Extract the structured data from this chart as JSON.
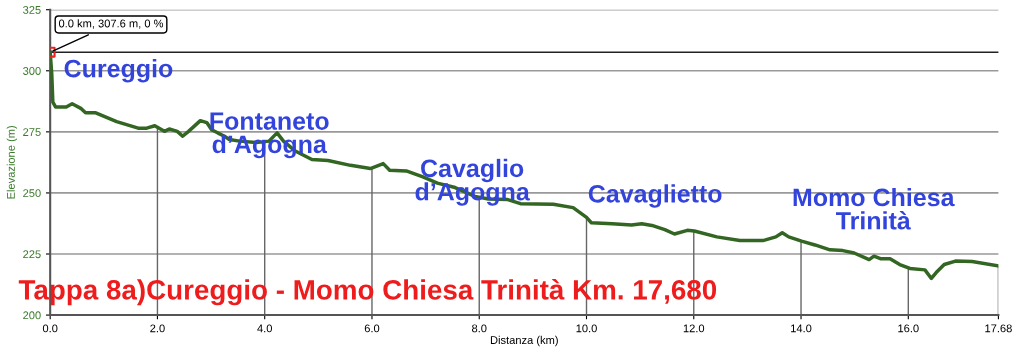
{
  "chart_data": {
    "type": "line",
    "title": "Tappa 8a)Cureggio - Momo Chiesa Trinità Km. 17,680",
    "xlabel": "Distanza (km)",
    "ylabel": "Elevazione (m)",
    "xlim": [
      0,
      17.68
    ],
    "ylim": [
      200,
      325
    ],
    "xticks": [
      {
        "value": 0,
        "label": "0.0"
      },
      {
        "value": 2,
        "label": "2.0"
      },
      {
        "value": 4,
        "label": "4.0"
      },
      {
        "value": 6,
        "label": "6.0"
      },
      {
        "value": 8,
        "label": "8.0"
      },
      {
        "value": 10,
        "label": "10.0"
      },
      {
        "value": 12,
        "label": "12.0"
      },
      {
        "value": 14,
        "label": "14.0"
      },
      {
        "value": 16,
        "label": "16.0"
      },
      17.68
    ],
    "yticks": [
      200,
      225,
      250,
      275,
      300,
      325
    ],
    "grid": true,
    "series": [
      {
        "color": "#336622",
        "x": [
          0,
          0.03,
          0.05,
          0.1,
          0.3,
          0.41,
          0.58,
          0.66,
          0.85,
          1.24,
          1.64,
          1.8,
          1.95,
          2.13,
          2.22,
          2.37,
          2.47,
          2.58,
          2.8,
          2.92,
          3.01,
          3.13,
          3.25,
          3.34,
          3.53,
          3.84,
          4.08,
          4.23,
          4.35,
          4.56,
          4.88,
          5.18,
          5.6,
          5.97,
          6.21,
          6.33,
          6.64,
          6.95,
          7.22,
          7.55,
          7.92,
          8.17,
          8.53,
          8.77,
          9.38,
          9.75,
          10.0,
          10.09,
          10.48,
          10.84,
          11.03,
          11.22,
          11.46,
          11.64,
          11.88,
          12.01,
          12.43,
          12.86,
          13.29,
          13.53,
          13.65,
          13.77,
          14.01,
          14.26,
          14.54,
          14.78,
          14.99,
          15.27,
          15.36,
          15.48,
          15.66,
          15.84,
          16.03,
          16.31,
          16.43,
          16.52,
          16.67,
          16.88,
          17.19,
          17.68
        ],
        "values": [
          307.6,
          298.5,
          287.2,
          285.2,
          285.2,
          286.5,
          284.5,
          282.8,
          282.8,
          279.2,
          276.5,
          276.5,
          277.5,
          275.2,
          276.2,
          275.2,
          273.2,
          275.2,
          279.6,
          278.8,
          275.9,
          274.5,
          273.2,
          271.9,
          271.2,
          270.6,
          271.2,
          274.6,
          271.2,
          267.3,
          263.7,
          263.3,
          261.3,
          260,
          262,
          259.3,
          259,
          256.6,
          254,
          252.2,
          248.6,
          247.5,
          247.3,
          245.6,
          245.4,
          244,
          240,
          237.8,
          237.4,
          236.9,
          237.4,
          236.7,
          235,
          233.2,
          234.7,
          234.4,
          232,
          230.5,
          230.5,
          232,
          233.7,
          232,
          230.3,
          228.7,
          226.7,
          226.4,
          225.4,
          222.7,
          224.1,
          223.1,
          223.1,
          220.7,
          219.1,
          218.5,
          215,
          217.4,
          220.7,
          222.1,
          221.9,
          220.1
        ]
      },
      {
        "type": "scatter",
        "color": "#ee2222",
        "marker": "square",
        "x": [
          0
        ],
        "values": [
          307.6
        ]
      }
    ],
    "ref_lines": [
      {
        "axis": "y",
        "value": 307.6,
        "color": "#222222"
      }
    ],
    "annotations": [
      {
        "text": "0.0 km, 307.6 m, 0 %",
        "x": 0,
        "y": 307.6
      },
      "Cureggio",
      "Fontaneto\nd’Agogna",
      "Cavaglio\nd’Agogna",
      "Cavaglietto",
      "Momo Chiesa\nTrinità"
    ]
  }
}
